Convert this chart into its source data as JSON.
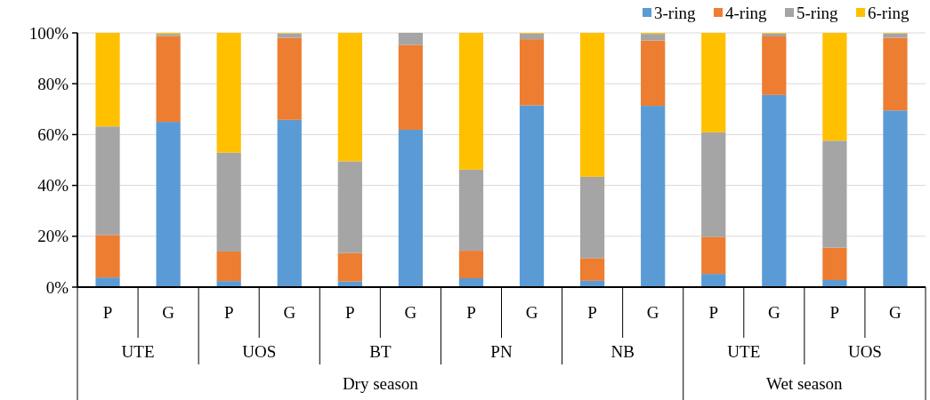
{
  "chart_data": {
    "type": "bar",
    "stacked": true,
    "categories": [
      "P",
      "G",
      "P",
      "G",
      "P",
      "G",
      "P",
      "G",
      "P",
      "G",
      "P",
      "G",
      "P",
      "G"
    ],
    "series": [
      {
        "name": "3-ring",
        "color": "#5b9bd5",
        "values": [
          3.8,
          65,
          2.4,
          65.8,
          2.2,
          61.9,
          3.5,
          71.5,
          2.5,
          71.3,
          5.2,
          75.6,
          2.8,
          69.5
        ]
      },
      {
        "name": "4-ring",
        "color": "#ed7d31",
        "values": [
          16.7,
          33.8,
          11.6,
          32.3,
          11.2,
          33.4,
          10.8,
          26,
          8.9,
          25.7,
          14.6,
          23,
          12.7,
          28.6
        ]
      },
      {
        "name": "5-ring",
        "color": "#a5a5a5",
        "values": [
          42.7,
          0.8,
          38.9,
          1.7,
          36.1,
          4.7,
          31.9,
          2.2,
          32,
          2.6,
          41.1,
          1.1,
          42.1,
          1.7
        ]
      },
      {
        "name": "6-ring",
        "color": "#ffc000",
        "values": [
          36.8,
          0.4,
          47.1,
          0.2,
          50.5,
          0,
          53.8,
          0.3,
          56.6,
          0.4,
          39.1,
          0.3,
          42.4,
          0.2
        ]
      }
    ],
    "ylim": [
      0,
      100
    ],
    "yticks": [
      {
        "value": 0,
        "label": "0%"
      },
      {
        "value": 20,
        "label": "20%"
      },
      {
        "value": 40,
        "label": "40%"
      },
      {
        "value": 60,
        "label": "60%"
      },
      {
        "value": 80,
        "label": "80%"
      },
      {
        "value": 100,
        "label": "100%"
      }
    ],
    "grid": "y",
    "legend": "top right",
    "annotations": [
      "UTE",
      "UOS",
      "BT",
      "PN",
      "NB",
      "UTE",
      "UOS",
      "Dry season",
      "Wet season"
    ]
  }
}
